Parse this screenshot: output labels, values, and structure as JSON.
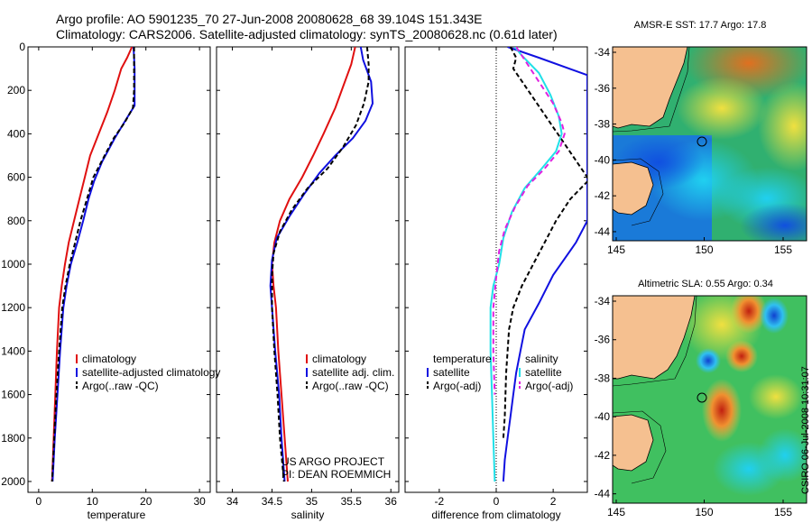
{
  "title_line1": "Argo profile: AO 5901235_70 27-Jun-2008 20080628_68 39.104S 151.343E",
  "title_line2": "Climatology: CARS2006. Satellite-adjusted climatology: synTS_20080628.nc (0.61d later)",
  "credit_line1": "US ARGO PROJECT",
  "credit_line2": "PI: DEAN ROEMMICH",
  "side_stamp": "CSIRO 06-Jul-2008 10:31:07",
  "colors": {
    "red": "#e01010",
    "blue": "#1010e0",
    "black": "#000000",
    "cyan": "#20e0e8",
    "magenta": "#e020e0",
    "land": "#f5c090"
  },
  "chart_data": [
    {
      "id": "temperature",
      "type": "line",
      "xlabel": "temperature",
      "ylabel": "",
      "xlim": [
        -2,
        32
      ],
      "ylim": [
        2050,
        0
      ],
      "xticks": [
        0,
        10,
        20,
        30
      ],
      "yticks": [
        0,
        200,
        400,
        600,
        800,
        1000,
        1200,
        1400,
        1600,
        1800,
        2000
      ],
      "legend": [
        "climatology",
        "satellite-adjusted climatology",
        "Argo(..raw -QC)"
      ],
      "series": [
        {
          "name": "climatology",
          "color": "red",
          "dash": "",
          "points": [
            [
              17.4,
              0
            ],
            [
              16.5,
              50
            ],
            [
              15.4,
              100
            ],
            [
              14.2,
              200
            ],
            [
              12.8,
              300
            ],
            [
              11.2,
              400
            ],
            [
              9.6,
              500
            ],
            [
              8.6,
              600
            ],
            [
              7.6,
              700
            ],
            [
              6.6,
              800
            ],
            [
              5.6,
              900
            ],
            [
              4.9,
              1000
            ],
            [
              4.3,
              1100
            ],
            [
              3.8,
              1200
            ],
            [
              3.4,
              1400
            ],
            [
              3.1,
              1600
            ],
            [
              2.8,
              1800
            ],
            [
              2.5,
              2000
            ]
          ]
        },
        {
          "name": "satellite-adjusted climatology",
          "color": "blue",
          "dash": "",
          "points": [
            [
              17.7,
              0
            ],
            [
              17.8,
              50
            ],
            [
              17.9,
              100
            ],
            [
              17.9,
              200
            ],
            [
              17.9,
              270
            ],
            [
              16.4,
              330
            ],
            [
              14.2,
              420
            ],
            [
              11.8,
              530
            ],
            [
              10.3,
              620
            ],
            [
              9.3,
              700
            ],
            [
              8.3,
              800
            ],
            [
              7.2,
              900
            ],
            [
              6.0,
              1000
            ],
            [
              5.2,
              1100
            ],
            [
              4.6,
              1200
            ],
            [
              4.0,
              1400
            ],
            [
              3.5,
              1600
            ],
            [
              3.0,
              1800
            ],
            [
              2.6,
              2000
            ]
          ]
        },
        {
          "name": "Argo(..raw -QC)",
          "color": "black",
          "dash": "5,3",
          "points": [
            [
              17.8,
              0
            ],
            [
              17.8,
              100
            ],
            [
              17.8,
              200
            ],
            [
              17.6,
              280
            ],
            [
              16.0,
              350
            ],
            [
              14.0,
              420
            ],
            [
              12.3,
              500
            ],
            [
              10.2,
              600
            ],
            [
              9.0,
              700
            ],
            [
              7.8,
              800
            ],
            [
              6.8,
              900
            ],
            [
              5.8,
              1000
            ],
            [
              5.0,
              1100
            ],
            [
              4.4,
              1200
            ],
            [
              3.8,
              1400
            ],
            [
              3.3,
              1600
            ],
            [
              2.9,
              1800
            ],
            [
              2.5,
              2000
            ]
          ]
        }
      ]
    },
    {
      "id": "salinity",
      "type": "line",
      "xlabel": "salinity",
      "ylabel": "",
      "xlim": [
        33.8,
        36.1
      ],
      "ylim": [
        2050,
        0
      ],
      "xticks": [
        34,
        34.5,
        35,
        35.5,
        36
      ],
      "yticks": [
        0,
        200,
        400,
        600,
        800,
        1000,
        1200,
        1400,
        1600,
        1800,
        2000
      ],
      "legend": [
        "climatology",
        "satellite adj. clim.",
        "Argo(..raw -QC)"
      ],
      "series": [
        {
          "name": "climatology",
          "color": "red",
          "dash": "",
          "points": [
            [
              35.55,
              0
            ],
            [
              35.5,
              80
            ],
            [
              35.4,
              180
            ],
            [
              35.3,
              280
            ],
            [
              35.15,
              400
            ],
            [
              35.02,
              500
            ],
            [
              34.88,
              600
            ],
            [
              34.72,
              700
            ],
            [
              34.6,
              800
            ],
            [
              34.53,
              900
            ],
            [
              34.5,
              1000
            ],
            [
              34.52,
              1100
            ],
            [
              34.55,
              1200
            ],
            [
              34.58,
              1400
            ],
            [
              34.62,
              1600
            ],
            [
              34.66,
              1800
            ],
            [
              34.7,
              2000
            ]
          ]
        },
        {
          "name": "satellite adj. clim.",
          "color": "blue",
          "dash": "",
          "points": [
            [
              35.62,
              0
            ],
            [
              35.65,
              60
            ],
            [
              35.75,
              160
            ],
            [
              35.77,
              260
            ],
            [
              35.68,
              340
            ],
            [
              35.52,
              420
            ],
            [
              35.3,
              500
            ],
            [
              35.1,
              580
            ],
            [
              34.9,
              680
            ],
            [
              34.72,
              780
            ],
            [
              34.56,
              880
            ],
            [
              34.5,
              980
            ],
            [
              34.48,
              1100
            ],
            [
              34.5,
              1200
            ],
            [
              34.54,
              1400
            ],
            [
              34.59,
              1600
            ],
            [
              34.62,
              1800
            ],
            [
              34.66,
              2000
            ]
          ]
        },
        {
          "name": "Argo(..raw -QC)",
          "color": "black",
          "dash": "5,3",
          "points": [
            [
              35.7,
              0
            ],
            [
              35.72,
              80
            ],
            [
              35.72,
              160
            ],
            [
              35.66,
              260
            ],
            [
              35.56,
              360
            ],
            [
              35.4,
              460
            ],
            [
              35.2,
              560
            ],
            [
              34.95,
              650
            ],
            [
              34.75,
              750
            ],
            [
              34.6,
              850
            ],
            [
              34.52,
              950
            ],
            [
              34.5,
              1050
            ],
            [
              34.5,
              1200
            ],
            [
              34.53,
              1400
            ],
            [
              34.57,
              1600
            ],
            [
              34.6,
              1800
            ],
            [
              34.65,
              2000
            ]
          ]
        }
      ]
    },
    {
      "id": "difference",
      "type": "line",
      "xlabel": "difference from climatology",
      "ylabel": "",
      "xlim": [
        -3.2,
        3.2
      ],
      "ylim": [
        2050,
        0
      ],
      "xticks": [
        -2,
        0,
        2
      ],
      "yticks": [
        0,
        200,
        400,
        600,
        800,
        1000,
        1200,
        1400,
        1600,
        1800,
        2000
      ],
      "legend_left": [
        "temperature",
        "satellite",
        "Argo(-adj)"
      ],
      "legend_right": [
        "salinity",
        "satellite",
        "Argo(-adj)"
      ],
      "series": [
        {
          "name": "temperature satellite",
          "color": "blue",
          "dash": "",
          "points": [
            [
              0.4,
              0
            ],
            [
              1.5,
              50
            ],
            [
              3.2,
              130
            ],
            [
              3.2,
              800
            ],
            [
              2.8,
              900
            ],
            [
              2.0,
              1050
            ],
            [
              1.5,
              1180
            ],
            [
              1.0,
              1300
            ],
            [
              0.85,
              1400
            ],
            [
              0.7,
              1500
            ],
            [
              0.6,
              1600
            ],
            [
              0.5,
              1700
            ],
            [
              0.4,
              1800
            ],
            [
              0.3,
              1900
            ],
            [
              0.25,
              2000
            ]
          ]
        },
        {
          "name": "temperature Argo(-adj)",
          "color": "black",
          "dash": "5,3",
          "points": [
            [
              0.5,
              0
            ],
            [
              0.7,
              50
            ],
            [
              0.6,
              100
            ],
            [
              3.2,
              600
            ],
            [
              3.2,
              620
            ],
            [
              2.6,
              700
            ],
            [
              2.1,
              800
            ],
            [
              1.7,
              900
            ],
            [
              1.3,
              1000
            ],
            [
              0.9,
              1100
            ],
            [
              0.6,
              1200
            ],
            [
              0.45,
              1300
            ],
            [
              0.35,
              1500
            ],
            [
              0.3,
              1700
            ],
            [
              0.25,
              1800
            ]
          ]
        },
        {
          "name": "salinity satellite",
          "color": "cyan",
          "dash": "",
          "points": [
            [
              0.65,
              0
            ],
            [
              0.9,
              40
            ],
            [
              1.5,
              120
            ],
            [
              1.9,
              220
            ],
            [
              2.2,
              320
            ],
            [
              2.3,
              400
            ],
            [
              2.1,
              480
            ],
            [
              1.6,
              560
            ],
            [
              1.0,
              650
            ],
            [
              0.55,
              760
            ],
            [
              0.25,
              880
            ],
            [
              0.1,
              1000
            ],
            [
              -0.1,
              1100
            ],
            [
              -0.2,
              1200
            ],
            [
              -0.2,
              1400
            ],
            [
              -0.15,
              1600
            ],
            [
              -0.1,
              1800
            ],
            [
              -0.05,
              2000
            ]
          ]
        },
        {
          "name": "salinity Argo(-adj)",
          "color": "magenta",
          "dash": "6,4",
          "points": [
            [
              0.7,
              0
            ],
            [
              1.0,
              60
            ],
            [
              1.5,
              160
            ],
            [
              2.0,
              260
            ],
            [
              2.3,
              350
            ],
            [
              2.4,
              400
            ],
            [
              2.2,
              480
            ],
            [
              1.7,
              560
            ],
            [
              1.1,
              640
            ],
            [
              0.65,
              740
            ],
            [
              0.3,
              840
            ],
            [
              0.1,
              940
            ],
            [
              0.0,
              1060
            ],
            [
              -0.1,
              1200
            ],
            [
              -0.1,
              1400
            ],
            [
              -0.05,
              1600
            ]
          ]
        }
      ]
    }
  ],
  "maps": [
    {
      "id": "sst",
      "title": "AMSR-E SST: 17.7 Argo: 17.8",
      "xticks": [
        "145",
        "150",
        "155"
      ],
      "yticks": [
        "-34",
        "-36",
        "-38",
        "-40",
        "-42",
        "-44"
      ]
    },
    {
      "id": "sla",
      "title": "Altimetric SLA: 0.55 Argo: 0.34",
      "xticks": [
        "145",
        "150",
        "155"
      ],
      "yticks": [
        "-34",
        "-36",
        "-38",
        "-40",
        "-42",
        "-44"
      ]
    }
  ]
}
